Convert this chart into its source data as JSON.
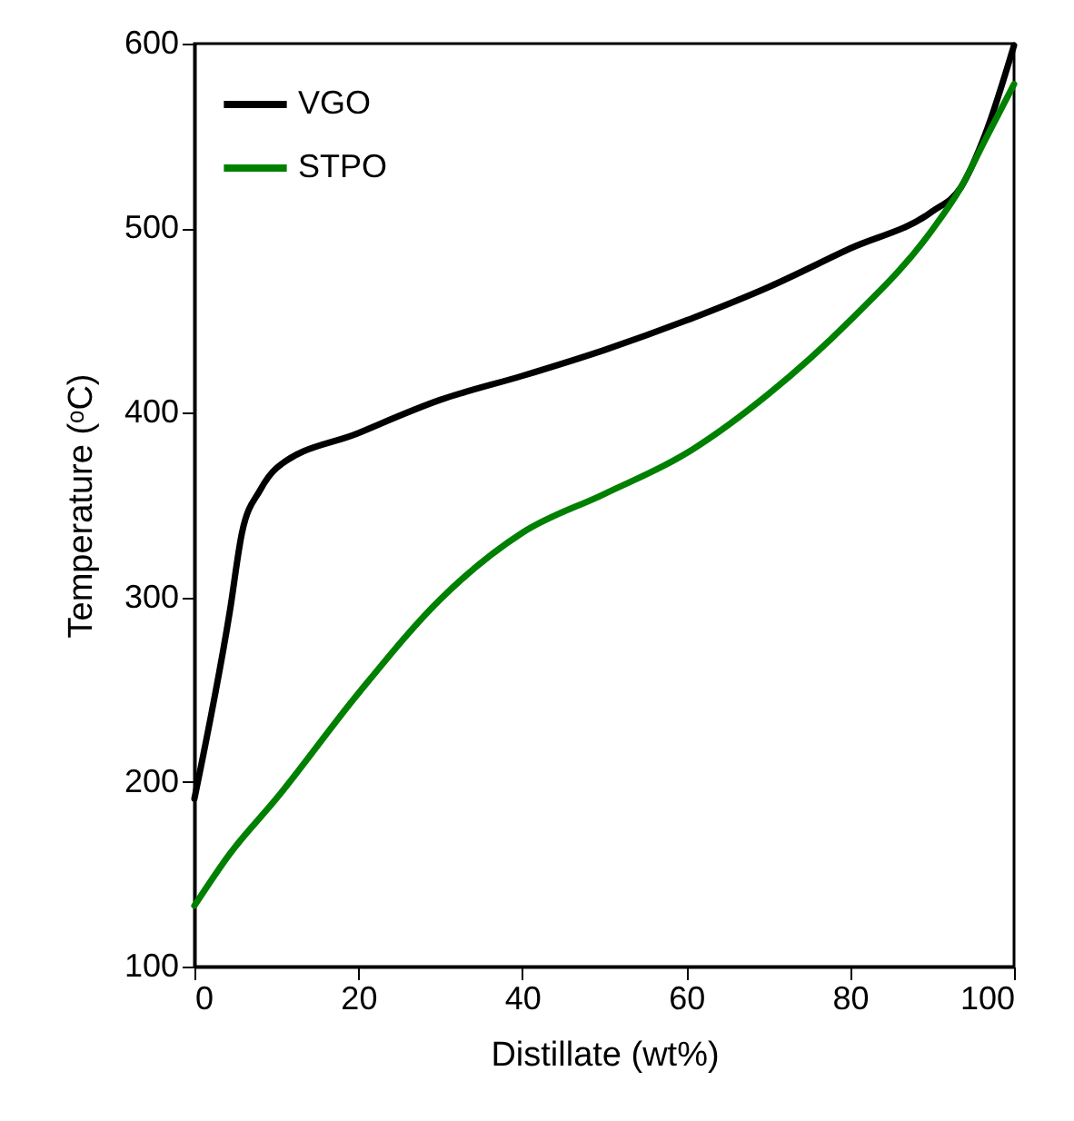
{
  "chart_data": {
    "type": "line",
    "xlabel": "Distillate (wt%)",
    "ylabel": "Temperature (ᵒC)",
    "xlim": [
      0,
      100
    ],
    "xticks": [
      0,
      20,
      40,
      60,
      80,
      100
    ],
    "ylim": [
      100,
      600
    ],
    "yticks": [
      100,
      200,
      300,
      400,
      500,
      600
    ],
    "grid": false,
    "legend": "top left",
    "line_style": "solid",
    "series": [
      {
        "name": "VGO",
        "color": "#000000",
        "x": [
          0,
          4.3,
          5.8,
          8,
          10,
          20,
          30,
          40,
          50,
          60,
          70,
          80,
          90,
          93.5,
          96.5,
          100
        ],
        "values": [
          191,
          292,
          335,
          358,
          370,
          389,
          407,
          420,
          434,
          450,
          468,
          489,
          509,
          522,
          551,
          599
        ]
      },
      {
        "name": "STPO",
        "color": "#008000",
        "x": [
          0,
          4.3,
          10,
          20,
          30,
          40,
          50,
          60,
          70,
          80,
          90,
          93.5,
          96.5,
          100
        ],
        "values": [
          133,
          161,
          191,
          248,
          299,
          335,
          356,
          378,
          410,
          450,
          499,
          522,
          548,
          578
        ]
      }
    ]
  }
}
